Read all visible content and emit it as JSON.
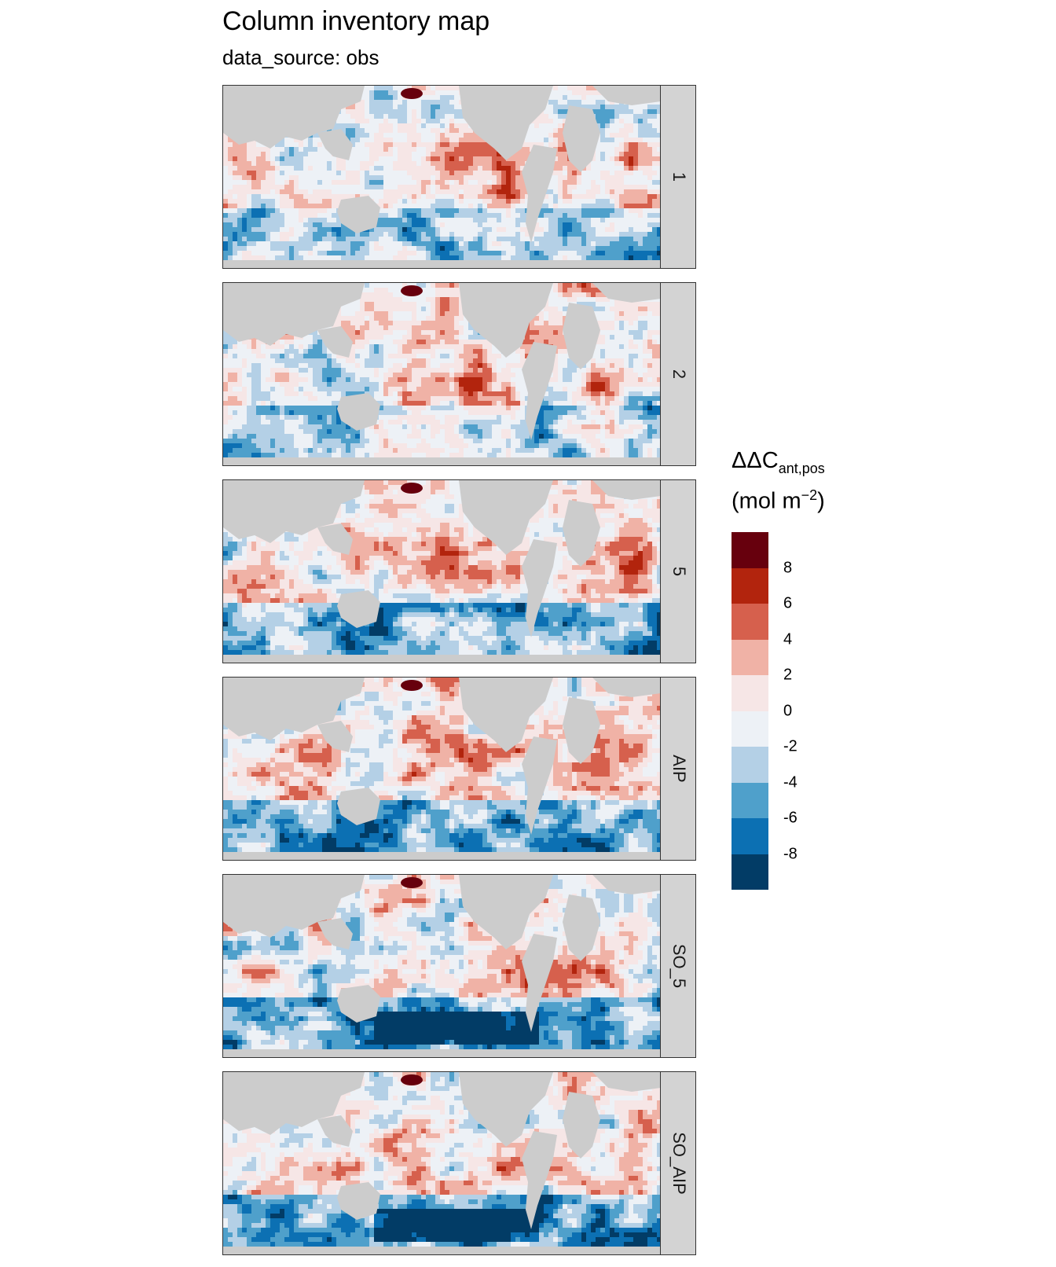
{
  "title": "Column inventory map",
  "subtitle": "data_source: obs",
  "legend": {
    "title_main": "ΔΔC",
    "title_sub": "ant,pos",
    "unit_prefix": "(mol m",
    "unit_sup": "−2",
    "unit_suffix": ")",
    "bins": [
      "#67000d",
      "#b2240d",
      "#d6604d",
      "#f0b2a6",
      "#f6e6e6",
      "#edf1f6",
      "#b4d0e6",
      "#4fa0cb",
      "#0c70b3",
      "#023c66"
    ],
    "labels": [
      "8",
      "6",
      "4",
      "2",
      "0",
      "-2",
      "-4",
      "-6",
      "-8"
    ]
  },
  "colors": {
    "land": "#cccccc",
    "strip": "#d3d3d3"
  },
  "chart_data": {
    "type": "heatmap",
    "facets": [
      "1",
      "2",
      "5",
      "AIP",
      "SO_5",
      "SO_AIP"
    ],
    "legend_placement": "right",
    "color_scale": {
      "min": -10,
      "max": 10,
      "step": 2
    }
  }
}
